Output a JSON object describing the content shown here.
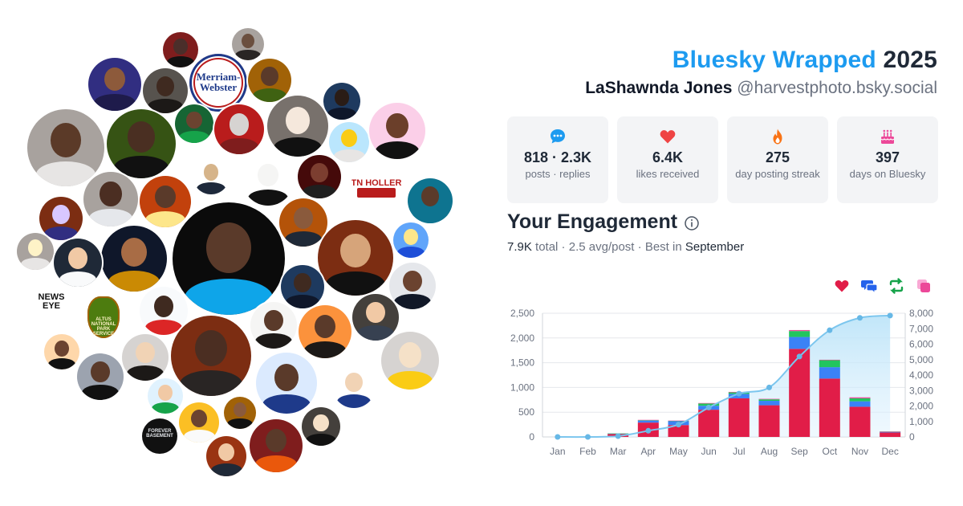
{
  "header": {
    "brand": "Bluesky Wrapped",
    "year": "2025",
    "display_name": "LaShawnda Jones",
    "handle": "@harvestphoto.bsky.social"
  },
  "stats": [
    {
      "icon": "speech-bubble-icon",
      "value": "818 · 2.3K",
      "label": "posts · replies",
      "color": "#1d9bf0"
    },
    {
      "icon": "heart-icon",
      "value": "6.4K",
      "label": "likes received",
      "color": "#ef4444"
    },
    {
      "icon": "flame-icon",
      "value": "275",
      "label": "day posting streak",
      "color": "#f97316"
    },
    {
      "icon": "cake-icon",
      "value": "397",
      "label": "days on Bluesky",
      "color": "#ec4899"
    }
  ],
  "engagement": {
    "title": "Your Engagement",
    "total": "7.9K",
    "total_word": "total",
    "avg": "2.5 avg/post",
    "best_prefix": "Best in",
    "best_month": "September"
  },
  "legend": [
    {
      "icon": "heart-icon",
      "color": "#e11d48"
    },
    {
      "icon": "reply-bubbles-icon",
      "color": "#2563eb"
    },
    {
      "icon": "repost-icon",
      "color": "#16a34a"
    },
    {
      "icon": "quote-icon",
      "color": "#ec4899"
    }
  ],
  "avatar_logos": {
    "merriam": [
      "Merriam-",
      "Webster"
    ],
    "tn": "TN HOLLER",
    "news": [
      "NEWS",
      "EYE"
    ],
    "parks": [
      "ALTUS",
      "NATIONAL",
      "PARK",
      "SERVICE"
    ],
    "forever": [
      "FOREVER",
      "BASEMENT"
    ]
  },
  "chart_data": {
    "type": "bar",
    "categories": [
      "Jan",
      "Feb",
      "Mar",
      "Apr",
      "May",
      "Jun",
      "Jul",
      "Aug",
      "Sep",
      "Oct",
      "Nov",
      "Dec"
    ],
    "series": [
      {
        "values": [
          0,
          0,
          60,
          290,
          240,
          550,
          780,
          640,
          1780,
          1180,
          610,
          90
        ],
        "color": "#e11d48"
      },
      {
        "values": [
          0,
          0,
          8,
          40,
          80,
          80,
          90,
          90,
          240,
          230,
          110,
          12
        ],
        "color": "#3b82f6"
      },
      {
        "values": [
          0,
          0,
          2,
          10,
          5,
          45,
          30,
          30,
          120,
          140,
          60,
          6
        ],
        "color": "#22c55e"
      },
      {
        "values": [
          0,
          0,
          0,
          5,
          5,
          10,
          10,
          10,
          20,
          10,
          20,
          2
        ],
        "color": "#ec4899"
      }
    ],
    "cumulative": {
      "values": [
        0,
        0,
        50,
        400,
        800,
        1900,
        2800,
        3200,
        5200,
        6900,
        7700,
        7850
      ],
      "color": "#7cc6ee"
    },
    "ylim": [
      0,
      2500
    ],
    "yticks": [
      "0",
      "500",
      "1,000",
      "1,500",
      "2,000",
      "2,500"
    ],
    "y2lim": [
      0,
      8000
    ],
    "y2ticks": [
      "0",
      "1,000",
      "2,000",
      "3,000",
      "4,000",
      "5,000",
      "6,000",
      "7,000",
      "8,000"
    ],
    "grid": true
  }
}
